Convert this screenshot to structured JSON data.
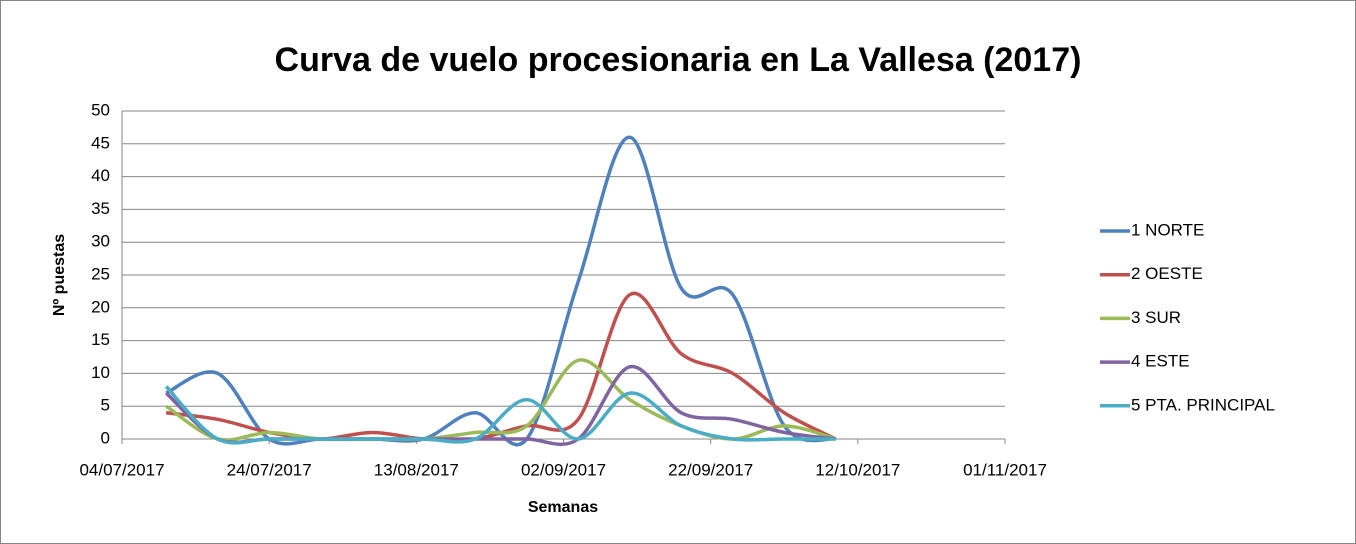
{
  "chart_data": {
    "type": "line",
    "title": "Curva de vuelo procesionaria en La Vallesa (2017)",
    "x_label": "Semanas",
    "y_label": "Nº puestas",
    "x": [
      "10/07/2017",
      "17/07/2017",
      "24/07/2017",
      "31/07/2017",
      "07/08/2017",
      "14/08/2017",
      "21/08/2017",
      "28/08/2017",
      "04/09/2017",
      "11/09/2017",
      "18/09/2017",
      "25/09/2017",
      "02/10/2017",
      "09/10/2017"
    ],
    "series": [
      {
        "name": "1 NORTE",
        "color": "#4f81bd",
        "values": [
          7,
          10,
          0,
          0,
          0,
          0,
          4,
          0,
          24,
          46,
          23,
          22,
          2,
          0
        ]
      },
      {
        "name": "2 OESTE",
        "color": "#c0504d",
        "values": [
          4,
          3,
          1,
          0,
          1,
          0,
          0,
          2,
          3,
          22,
          13,
          10,
          4,
          0
        ]
      },
      {
        "name": "3 SUR",
        "color": "#9bbb59",
        "values": [
          5,
          0,
          1,
          0,
          0,
          0,
          1,
          2,
          12,
          6,
          2,
          0,
          2,
          0
        ]
      },
      {
        "name": "4 ESTE",
        "color": "#8064a2",
        "values": [
          7,
          0,
          0,
          0,
          0,
          0,
          0,
          0,
          0,
          11,
          4,
          3,
          1,
          0
        ]
      },
      {
        "name": "5 PTA. PRINCIPAL",
        "color": "#4bacc6",
        "values": [
          8,
          0,
          0,
          0,
          0,
          0,
          0,
          6,
          0,
          7,
          2,
          0,
          0,
          0
        ]
      }
    ],
    "xlim": [
      "04/07/2017",
      "01/11/2017"
    ],
    "xticks": [
      "04/07/2017",
      "24/07/2017",
      "13/08/2017",
      "02/09/2017",
      "22/09/2017",
      "12/10/2017",
      "01/11/2017"
    ],
    "ylim": [
      0,
      50
    ],
    "yticks": [
      0,
      5,
      10,
      15,
      20,
      25,
      30,
      35,
      40,
      45,
      50
    ],
    "grid": true,
    "legend": "right"
  }
}
